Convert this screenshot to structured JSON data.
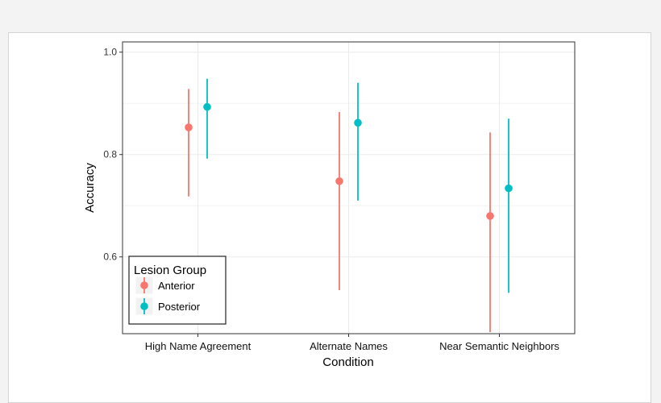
{
  "chart_data": {
    "type": "scatter",
    "title": "",
    "xlabel": "Condition",
    "ylabel": "Accuracy",
    "ylim": [
      0.45,
      1.02
    ],
    "yticks": [
      "0.6",
      "0.8",
      "1.0"
    ],
    "grid": true,
    "categories": [
      "High Name Agreement",
      "Alternate Names",
      "Near Semantic Neighbors"
    ],
    "legend": {
      "title": "Lesion Group",
      "position": "bottom-left"
    },
    "series": [
      {
        "name": "Anterior",
        "color": "#F8766D",
        "values": [
          0.853,
          0.748,
          0.68
        ],
        "lower": [
          0.718,
          0.535,
          0.453
        ],
        "upper": [
          0.928,
          0.883,
          0.843
        ]
      },
      {
        "name": "Posterior",
        "color": "#00BFC4",
        "values": [
          0.893,
          0.862,
          0.734
        ],
        "lower": [
          0.792,
          0.71,
          0.53
        ],
        "upper": [
          0.948,
          0.94,
          0.87
        ]
      }
    ]
  }
}
